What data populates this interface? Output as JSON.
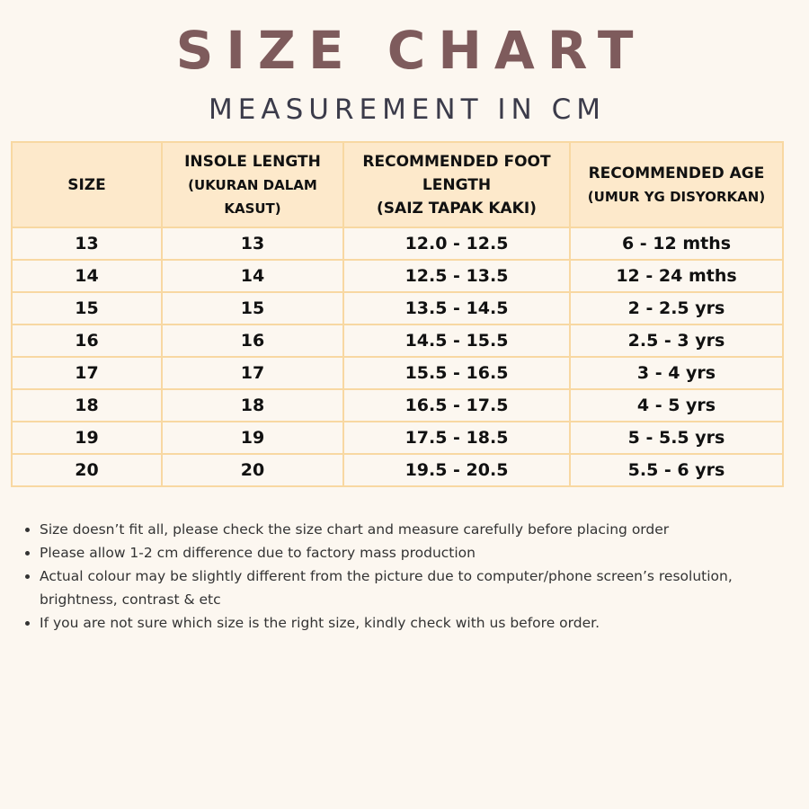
{
  "title": "SIZE CHART",
  "subtitle": "MEASUREMENT IN CM",
  "colors": {
    "title": "#7e5b5c",
    "header_bg": "#fde9cb",
    "border": "#f8d8a2",
    "background": "#fcf7f0"
  },
  "table": {
    "headers": [
      {
        "main": "SIZE",
        "sub": ""
      },
      {
        "main": "INSOLE LENGTH",
        "sub": "(UKURAN DALAM KASUT)"
      },
      {
        "main": "RECOMMENDED FOOT LENGTH",
        "sub": "(SAIZ TAPAK KAKI)"
      },
      {
        "main": "RECOMMENDED AGE",
        "sub": "(UMUR YG DISYORKAN)"
      }
    ],
    "rows": [
      [
        "13",
        "13",
        "12.0 - 12.5",
        "6 - 12 mths"
      ],
      [
        "14",
        "14",
        "12.5 - 13.5",
        "12 - 24 mths"
      ],
      [
        "15",
        "15",
        "13.5 - 14.5",
        "2 - 2.5 yrs"
      ],
      [
        "16",
        "16",
        "14.5 - 15.5",
        "2.5 - 3 yrs"
      ],
      [
        "17",
        "17",
        "15.5 - 16.5",
        "3 - 4 yrs"
      ],
      [
        "18",
        "18",
        "16.5 - 17.5",
        "4 - 5 yrs"
      ],
      [
        "19",
        "19",
        "17.5 - 18.5",
        "5 - 5.5 yrs"
      ],
      [
        "20",
        "20",
        "19.5 - 20.5",
        "5.5 - 6 yrs"
      ]
    ]
  },
  "notes": [
    "Size doesn’t fit all, please check the size chart and measure carefully before placing order",
    "Please allow 1-2 cm difference due to factory mass production",
    "Actual colour may be slightly different from the picture due to computer/phone screen’s resolution, brightness, contrast & etc",
    "If you are not sure which size is the right size, kindly check with us before order."
  ]
}
